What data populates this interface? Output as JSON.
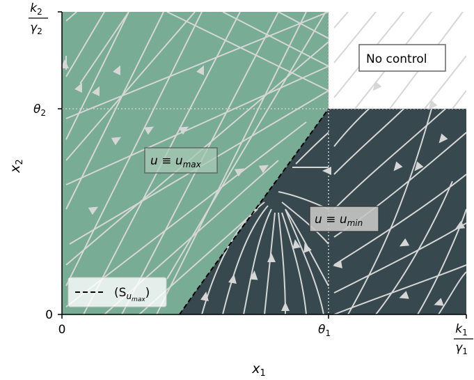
{
  "axes": {
    "x_label": "x",
    "x_label_sub": "1",
    "y_label": "x",
    "y_label_sub": "2",
    "x_ticks": [
      {
        "label": "0"
      },
      {
        "label": "θ",
        "sub": "1"
      },
      {
        "frac_num": "k",
        "frac_num_sub": "1",
        "frac_den": "γ",
        "frac_den_sub": "1"
      }
    ],
    "y_ticks": [
      {
        "label": "0"
      },
      {
        "label": "θ",
        "sub": "2"
      },
      {
        "frac_num": "k",
        "frac_num_sub": "2",
        "frac_den": "γ",
        "frac_den_sub": "2"
      }
    ]
  },
  "regions": {
    "u_max": {
      "label_main": "u ≡ u",
      "label_sub": "max",
      "color": "#79ac95"
    },
    "u_min": {
      "label_main": "u ≡ u",
      "label_sub": "min",
      "color": "#37494e"
    },
    "no_control": {
      "label": "No control",
      "color": "#ffffff"
    }
  },
  "legend": {
    "entry_main": "(S",
    "entry_sub": "u",
    "entry_subsub": "max",
    "entry_close": ")"
  },
  "colors": {
    "streamline": "#d6d6d6",
    "separatrix": "#000000",
    "threshold_line": "#cfcfcf"
  }
}
